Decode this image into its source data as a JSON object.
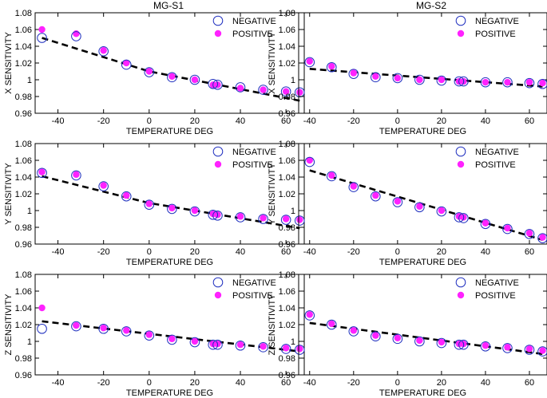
{
  "figure": {
    "columns": [
      "MG-S1",
      "MG-S2"
    ]
  },
  "colors": {
    "negative": "#1f2fbf",
    "positive": "#ff22ff",
    "fit": "#000000",
    "axis": "#000000"
  },
  "chart_data": [
    {
      "type": "scatter",
      "id": "s1-x",
      "title": "MG-S1",
      "xlabel": "TEMPERATURE DEG",
      "ylabel": "X SENSITIVITY",
      "xlim": [
        -50,
        68
      ],
      "ylim": [
        0.96,
        1.08
      ],
      "xticks": [
        -40,
        -20,
        0,
        20,
        40,
        60
      ],
      "xtick_labels": [
        "-40",
        "-20",
        "0",
        "20",
        "40",
        "60"
      ],
      "yticks": [
        0.96,
        0.98,
        1,
        1.02,
        1.04,
        1.06,
        1.08
      ],
      "ytick_labels": [
        "0.96",
        "0.98",
        "1",
        "1.02",
        "1.04",
        "1.06",
        "1.08"
      ],
      "legend": [
        "NEGATIVE",
        "POSITIVE"
      ],
      "legend_position": "top-right",
      "series": [
        {
          "name": "NEGATIVE",
          "marker": "open-circle",
          "x": [
            -47,
            -32,
            -20,
            -10,
            0,
            10,
            20,
            28,
            30,
            40,
            50,
            60,
            66
          ],
          "values": [
            1.05,
            1.052,
            1.034,
            1.018,
            1.009,
            1.003,
            1.0,
            0.995,
            0.994,
            0.991,
            0.988,
            0.986,
            0.985
          ]
        },
        {
          "name": "POSITIVE",
          "marker": "filled-circle",
          "x": [
            -47,
            -32,
            -20,
            -10,
            0,
            10,
            20,
            28,
            30,
            40,
            50,
            60,
            66
          ],
          "values": [
            1.06,
            1.055,
            1.035,
            1.02,
            1.01,
            1.004,
            1.0,
            0.994,
            0.994,
            0.99,
            0.988,
            0.986,
            0.985
          ]
        }
      ],
      "fit": {
        "type": "piecewise-linear",
        "x": [
          -47,
          0,
          66
        ],
        "y": [
          1.05,
          1.01,
          0.975
        ]
      }
    },
    {
      "type": "scatter",
      "id": "s2-x",
      "title": "MG-S2",
      "xlabel": "TEMPERATURE DEG",
      "ylabel": "X SENSITIVITY",
      "xlim": [
        -45,
        68
      ],
      "ylim": [
        0.96,
        1.08
      ],
      "xticks": [
        -40,
        -20,
        0,
        20,
        40,
        60
      ],
      "xtick_labels": [
        "-40",
        "-20",
        "0",
        "20",
        "40",
        "60"
      ],
      "yticks": [
        0.96,
        0.98,
        1,
        1.02,
        1.04,
        1.06,
        1.08
      ],
      "ytick_labels": [
        "0.96",
        "0.98",
        "1",
        "1.02",
        "1.04",
        "1.06",
        "1.08"
      ],
      "legend": [
        "NEGATIVE",
        "POSITIVE"
      ],
      "legend_position": "top-right",
      "series": [
        {
          "name": "NEGATIVE",
          "marker": "open-circle",
          "x": [
            -40,
            -30,
            -20,
            -10,
            0,
            10,
            20,
            28,
            30,
            40,
            50,
            60,
            66
          ],
          "values": [
            1.021,
            1.015,
            1.007,
            1.003,
            1.002,
            1.0,
            0.999,
            0.998,
            0.998,
            0.997,
            0.997,
            0.996,
            0.995
          ]
        },
        {
          "name": "POSITIVE",
          "marker": "filled-circle",
          "x": [
            -40,
            -30,
            -20,
            -10,
            0,
            10,
            20,
            28,
            30,
            40,
            50,
            60,
            66
          ],
          "values": [
            1.022,
            1.016,
            1.008,
            1.004,
            1.002,
            1.0,
            1.0,
            0.998,
            0.998,
            0.997,
            0.997,
            0.997,
            0.996
          ]
        }
      ],
      "fit": {
        "type": "piecewise-linear",
        "x": [
          -40,
          0,
          66
        ],
        "y": [
          1.013,
          1.005,
          0.992
        ]
      }
    },
    {
      "type": "scatter",
      "id": "s1-y",
      "title": "",
      "xlabel": "TEMPERATURE DEG",
      "ylabel": "Y SENSITIVITY",
      "xlim": [
        -50,
        68
      ],
      "ylim": [
        0.96,
        1.08
      ],
      "xticks": [
        -40,
        -20,
        0,
        20,
        40,
        60
      ],
      "xtick_labels": [
        "-40",
        "-20",
        "0",
        "20",
        "40",
        "60"
      ],
      "yticks": [
        0.96,
        0.98,
        1,
        1.02,
        1.04,
        1.06,
        1.08
      ],
      "ytick_labels": [
        "0.96",
        "0.98",
        "1",
        "1.02",
        "1.04",
        "1.06",
        "1.08"
      ],
      "legend": [
        "NEGATIVE",
        "POSITIVE"
      ],
      "legend_position": "top-right",
      "series": [
        {
          "name": "NEGATIVE",
          "marker": "open-circle",
          "x": [
            -47,
            -32,
            -20,
            -10,
            0,
            10,
            20,
            28,
            30,
            40,
            50,
            60,
            66
          ],
          "values": [
            1.045,
            1.042,
            1.029,
            1.017,
            1.007,
            1.002,
            0.999,
            0.995,
            0.994,
            0.992,
            0.99,
            0.989,
            0.988
          ]
        },
        {
          "name": "POSITIVE",
          "marker": "filled-circle",
          "x": [
            -47,
            -32,
            -20,
            -10,
            0,
            10,
            20,
            28,
            30,
            40,
            50,
            60,
            66
          ],
          "values": [
            1.046,
            1.043,
            1.03,
            1.018,
            1.008,
            1.003,
            1.0,
            0.996,
            0.995,
            0.993,
            0.991,
            0.99,
            0.989
          ]
        }
      ],
      "fit": {
        "type": "piecewise-linear",
        "x": [
          -47,
          0,
          66
        ],
        "y": [
          1.041,
          1.009,
          0.979
        ]
      }
    },
    {
      "type": "scatter",
      "id": "s2-y",
      "title": "",
      "xlabel": "TEMPERATURE DEG",
      "ylabel": "Y SENSITIVITY",
      "xlim": [
        -45,
        68
      ],
      "ylim": [
        0.96,
        1.08
      ],
      "xticks": [
        -40,
        -20,
        0,
        20,
        40,
        60
      ],
      "xtick_labels": [
        "-40",
        "-20",
        "0",
        "20",
        "40",
        "60"
      ],
      "yticks": [
        0.96,
        0.98,
        1,
        1.02,
        1.04,
        1.06,
        1.08
      ],
      "ytick_labels": [
        "0.96",
        "0.98",
        "1",
        "1.02",
        "1.04",
        "1.06",
        "1.08"
      ],
      "legend": [
        "NEGATIVE",
        "POSITIVE"
      ],
      "legend_position": "top-right",
      "series": [
        {
          "name": "NEGATIVE",
          "marker": "open-circle",
          "x": [
            -40,
            -30,
            -20,
            -10,
            0,
            10,
            20,
            28,
            30,
            40,
            50,
            60,
            66
          ],
          "values": [
            1.058,
            1.041,
            1.028,
            1.017,
            1.01,
            1.004,
            0.999,
            0.992,
            0.991,
            0.984,
            0.978,
            0.972,
            0.967
          ]
        },
        {
          "name": "POSITIVE",
          "marker": "filled-circle",
          "x": [
            -40,
            -30,
            -20,
            -10,
            0,
            10,
            20,
            28,
            30,
            40,
            50,
            60,
            66
          ],
          "values": [
            1.06,
            1.042,
            1.029,
            1.018,
            1.011,
            1.005,
            1.0,
            0.993,
            0.992,
            0.985,
            0.979,
            0.973,
            0.968
          ]
        }
      ],
      "fit": {
        "type": "linear",
        "x": [
          -40,
          66
        ],
        "y": [
          1.048,
          0.965
        ]
      }
    },
    {
      "type": "scatter",
      "id": "s1-z",
      "title": "",
      "xlabel": "TEMPERATURE DEG",
      "ylabel": "Z SENSITIVITY",
      "xlim": [
        -50,
        68
      ],
      "ylim": [
        0.96,
        1.08
      ],
      "xticks": [
        -40,
        -20,
        0,
        20,
        40,
        60
      ],
      "xtick_labels": [
        "-40",
        "-20",
        "0",
        "20",
        "40",
        "60"
      ],
      "yticks": [
        0.96,
        0.98,
        1,
        1.02,
        1.04,
        1.06,
        1.08
      ],
      "ytick_labels": [
        "0.96",
        "0.98",
        "1",
        "1.02",
        "1.04",
        "1.06",
        "1.08"
      ],
      "legend": [
        "NEGATIVE",
        "POSITIVE"
      ],
      "legend_position": "top-right",
      "series": [
        {
          "name": "NEGATIVE",
          "marker": "open-circle",
          "x": [
            -47,
            -32,
            -20,
            -10,
            0,
            10,
            20,
            28,
            30,
            40,
            50,
            60,
            66
          ],
          "values": [
            1.015,
            1.018,
            1.015,
            1.012,
            1.007,
            1.002,
            0.999,
            0.996,
            0.996,
            0.995,
            0.993,
            0.991,
            0.99
          ]
        },
        {
          "name": "POSITIVE",
          "marker": "filled-circle",
          "x": [
            -47,
            -32,
            -20,
            -10,
            0,
            10,
            20,
            28,
            30,
            40,
            50,
            60,
            66
          ],
          "values": [
            1.04,
            1.019,
            1.016,
            1.013,
            1.008,
            1.003,
            1.0,
            0.997,
            0.997,
            0.996,
            0.994,
            0.992,
            0.991
          ]
        }
      ],
      "fit": {
        "type": "linear",
        "x": [
          -47,
          66
        ],
        "y": [
          1.024,
          0.988
        ]
      }
    },
    {
      "type": "scatter",
      "id": "s2-z",
      "title": "",
      "xlabel": "TEMPERATURE DEG",
      "ylabel": "Z SENSITIVITY",
      "xlim": [
        -45,
        68
      ],
      "ylim": [
        0.96,
        1.08
      ],
      "xticks": [
        -40,
        -20,
        0,
        20,
        40,
        60
      ],
      "xtick_labels": [
        "-40",
        "-20",
        "0",
        "20",
        "40",
        "60"
      ],
      "yticks": [
        0.96,
        0.98,
        1,
        1.02,
        1.04,
        1.06,
        1.08
      ],
      "ytick_labels": [
        "0.96",
        "0.98",
        "1",
        "1.02",
        "1.04",
        "1.06",
        "1.08"
      ],
      "legend": [
        "NEGATIVE",
        "POSITIVE"
      ],
      "legend_position": "top-right",
      "series": [
        {
          "name": "NEGATIVE",
          "marker": "open-circle",
          "x": [
            -40,
            -30,
            -20,
            -10,
            0,
            10,
            20,
            28,
            30,
            40,
            50,
            60,
            66
          ],
          "values": [
            1.031,
            1.02,
            1.012,
            1.006,
            1.003,
            1.0,
            0.998,
            0.996,
            0.996,
            0.994,
            0.992,
            0.99,
            0.988
          ]
        },
        {
          "name": "POSITIVE",
          "marker": "filled-circle",
          "x": [
            -40,
            -30,
            -20,
            -10,
            0,
            10,
            20,
            28,
            30,
            40,
            50,
            60,
            66
          ],
          "values": [
            1.032,
            1.021,
            1.013,
            1.007,
            1.004,
            1.001,
            0.999,
            0.997,
            0.997,
            0.995,
            0.993,
            0.991,
            0.989
          ]
        }
      ],
      "fit": {
        "type": "linear",
        "x": [
          -40,
          66
        ],
        "y": [
          1.022,
          0.985
        ]
      }
    }
  ]
}
